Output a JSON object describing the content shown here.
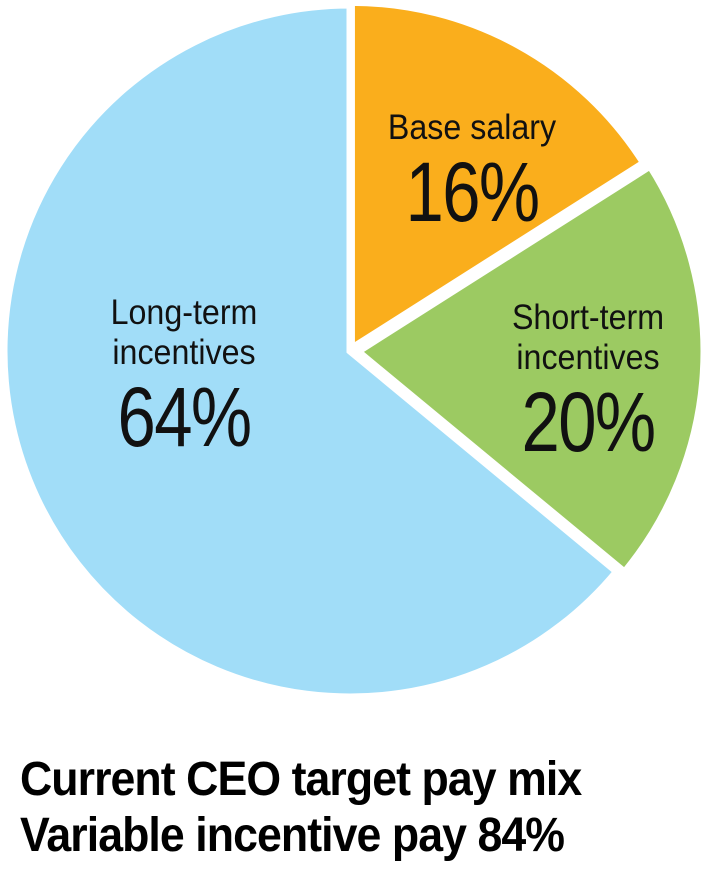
{
  "chart_data": {
    "type": "pie",
    "title_lines": [
      "Current CEO target pay mix",
      "Variable incentive pay 84%"
    ],
    "start_angle_deg": 0,
    "direction": "clockwise",
    "center": [
      350,
      351
    ],
    "radius": 346,
    "gap_color": "#ffffff",
    "gap_width": 7,
    "text_color": "#111111",
    "slices": [
      {
        "id": "base-salary",
        "name_lines": [
          "Base salary"
        ],
        "pct": "16%",
        "value": 16,
        "color": "#FAAE1C",
        "explode": 3
      },
      {
        "id": "short-term-incentives",
        "name_lines": [
          "Short-term",
          "incentives"
        ],
        "pct": "20%",
        "value": 20,
        "color": "#9CCA62",
        "explode": 8
      },
      {
        "id": "long-term-incentives",
        "name_lines": [
          "Long-term",
          "incentives"
        ],
        "pct": "64%",
        "value": 64,
        "color": "#A1DDF8",
        "explode": 0
      }
    ]
  }
}
